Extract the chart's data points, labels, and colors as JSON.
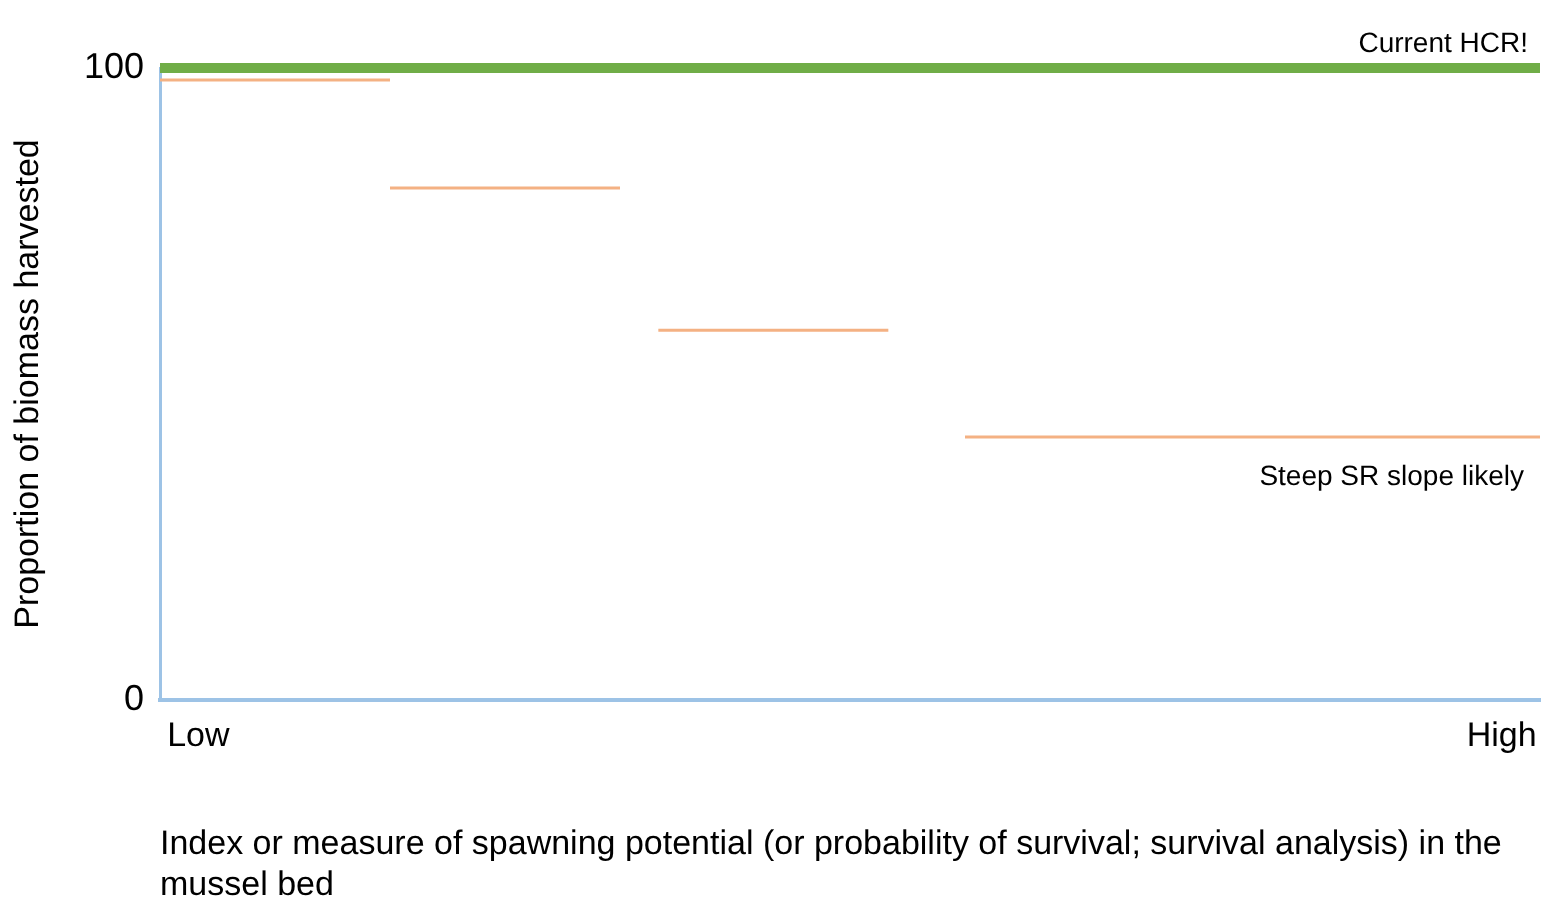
{
  "chart_data": {
    "type": "line",
    "ylabel": "Proportion of biomass harvested",
    "xlabel": "Index or measure of spawning potential (or probability of survival; survival analysis) in the mussel bed",
    "categories": [
      null,
      "Low",
      null,
      null,
      null,
      null,
      null,
      null,
      null,
      null,
      null,
      null,
      null,
      null,
      null,
      null,
      null,
      null,
      null,
      null,
      null,
      null,
      null,
      null,
      null,
      null,
      null,
      null,
      null,
      null,
      null,
      null,
      null,
      null,
      null,
      "High",
      null
    ],
    "ylim": [
      0,
      100
    ],
    "yticks": [
      0,
      100
    ],
    "grid": false,
    "legend": false,
    "marker": "none",
    "line_style": "solid",
    "series": [
      {
        "color": "#f4b183",
        "values": [
          98.1,
          null,
          null,
          null,
          null,
          null,
          98.1,
          null,
          null,
          null,
          null,
          null,
          null,
          null,
          null,
          null,
          null,
          null,
          null,
          null,
          null,
          null,
          null,
          null,
          null,
          null,
          null,
          null,
          null,
          null,
          null,
          null,
          null,
          null,
          null,
          null,
          null
        ]
      },
      {
        "color": "#f4b183",
        "values": [
          null,
          null,
          null,
          null,
          null,
          null,
          81,
          null,
          null,
          null,
          null,
          null,
          81,
          null,
          null,
          null,
          null,
          null,
          null,
          null,
          null,
          null,
          null,
          null,
          null,
          null,
          null,
          null,
          null,
          null,
          null,
          null,
          null,
          null,
          null,
          null,
          null
        ]
      },
      {
        "color": "#f4b183",
        "values": [
          null,
          null,
          null,
          null,
          null,
          null,
          null,
          null,
          null,
          null,
          null,
          null,
          null,
          58.5,
          null,
          null,
          null,
          null,
          null,
          58.5,
          null,
          null,
          null,
          null,
          null,
          null,
          null,
          null,
          null,
          null,
          null,
          null,
          null,
          null,
          null,
          null,
          null
        ]
      },
      {
        "color": "#f4b183",
        "values": [
          null,
          null,
          null,
          null,
          null,
          null,
          null,
          null,
          null,
          null,
          null,
          null,
          null,
          null,
          null,
          null,
          null,
          null,
          null,
          null,
          null,
          41.6,
          null,
          null,
          null,
          null,
          null,
          null,
          null,
          null,
          null,
          null,
          null,
          null,
          null,
          null,
          41.6
        ]
      }
    ],
    "ref_lines": [
      {
        "axis": "y",
        "value": 100,
        "label": "Current HCR!",
        "color": "#70ad47"
      }
    ],
    "annotations": [
      "Steep SR slope likely"
    ]
  }
}
